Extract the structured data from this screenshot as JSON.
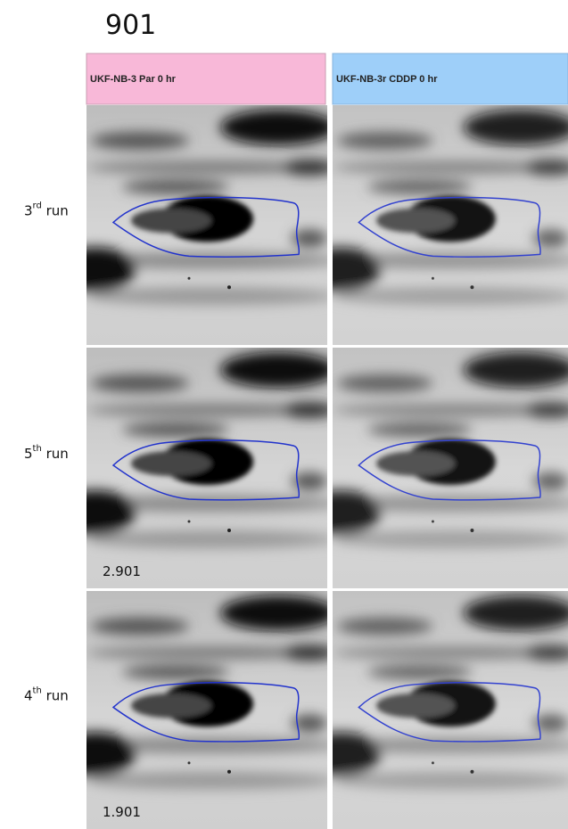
{
  "title": "901",
  "columns": [
    {
      "header": "UKF-NB-3 Par 0 hr"
    },
    {
      "header": "UKF-NB-3r CDDP 0 hr"
    }
  ],
  "rows": [
    {
      "ordinal": "3",
      "suffix": "rd",
      "text": " run",
      "sample": null
    },
    {
      "ordinal": "5",
      "suffix": "th",
      "text": " run",
      "sample": "2.901"
    },
    {
      "ordinal": "4",
      "suffix": "th",
      "text": " run",
      "sample": "1.901"
    }
  ]
}
